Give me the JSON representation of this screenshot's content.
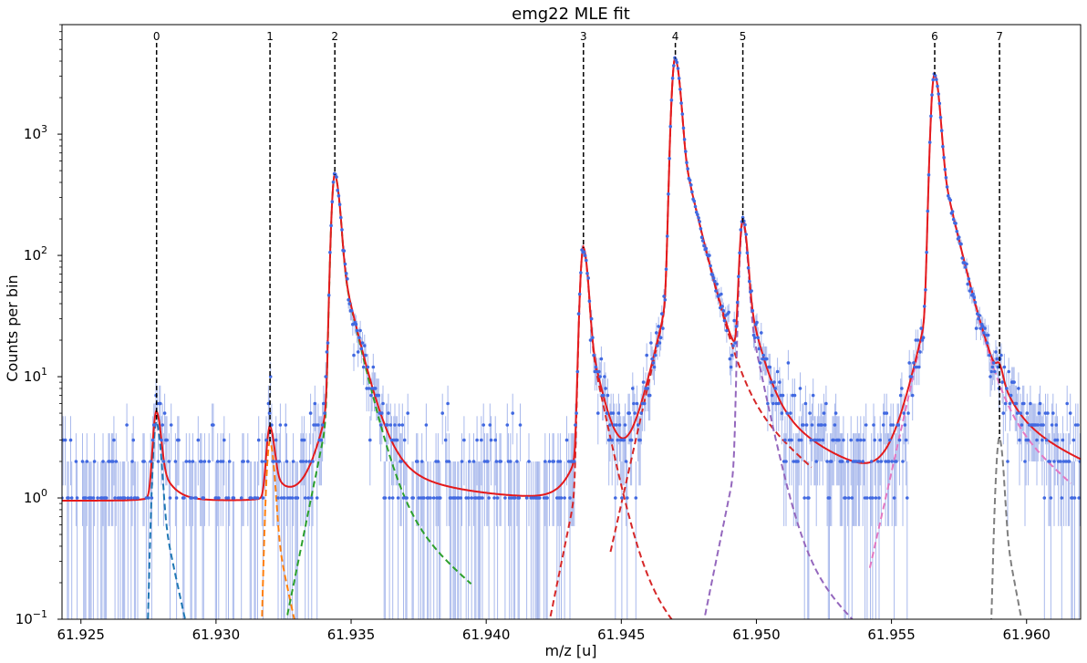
{
  "chart_data": {
    "type": "line",
    "title": "emg22 MLE fit",
    "xlabel": "m/z [u]",
    "ylabel": "Counts per bin",
    "xlim": [
      61.9243,
      61.962
    ],
    "ylim": [
      0.1,
      8000
    ],
    "yscale": "log",
    "grid": false,
    "x_ticks": [
      61.925,
      61.93,
      61.935,
      61.94,
      61.945,
      61.95,
      61.955,
      61.96
    ],
    "x_tick_labels": [
      "61.925",
      "61.930",
      "61.935",
      "61.940",
      "61.945",
      "61.950",
      "61.955",
      "61.960"
    ],
    "y_ticks": [
      0.1,
      1,
      10,
      100,
      1000
    ],
    "y_tick_base": "10",
    "y_tick_exponents": [
      "−1",
      "0",
      "1",
      "2",
      "3"
    ],
    "background": 0.95,
    "colors": {
      "data": "#4169e1",
      "errorbar": "#a9b9ec",
      "fit": "#e41a1c",
      "marker_line": "#000000"
    },
    "peaks": [
      {
        "label": "0",
        "x": 61.9278,
        "height": 4.2,
        "left_width": 0.0002,
        "right_width": 0.00025,
        "color": "#1f77b4"
      },
      {
        "label": "1",
        "x": 61.932,
        "height": 2.9,
        "left_width": 0.0002,
        "right_width": 0.00025,
        "color": "#ff7f0e"
      },
      {
        "label": "2",
        "x": 61.9344,
        "height": 460,
        "left_width": 0.00018,
        "right_width": 0.00028,
        "color": "#2ca02c"
      },
      {
        "label": "3",
        "x": 61.9436,
        "height": 115,
        "left_width": 0.00018,
        "right_width": 0.00025,
        "color": "#d62728"
      },
      {
        "label": "4",
        "x": 61.947,
        "height": 4200,
        "left_width": 0.0002,
        "right_width": 0.00028,
        "color": "#d62728"
      },
      {
        "label": "5",
        "x": 61.9495,
        "height": 185,
        "left_width": 0.00018,
        "right_width": 0.00025,
        "color": "#9467bd"
      },
      {
        "label": "6",
        "x": 61.9566,
        "height": 3100,
        "left_width": 0.0002,
        "right_width": 0.00028,
        "color": "#e377c2"
      },
      {
        "label": "7",
        "x": 61.959,
        "height": 3.1,
        "left_width": 0.0002,
        "right_width": 0.00022,
        "color": "#7f7f7f"
      }
    ]
  }
}
